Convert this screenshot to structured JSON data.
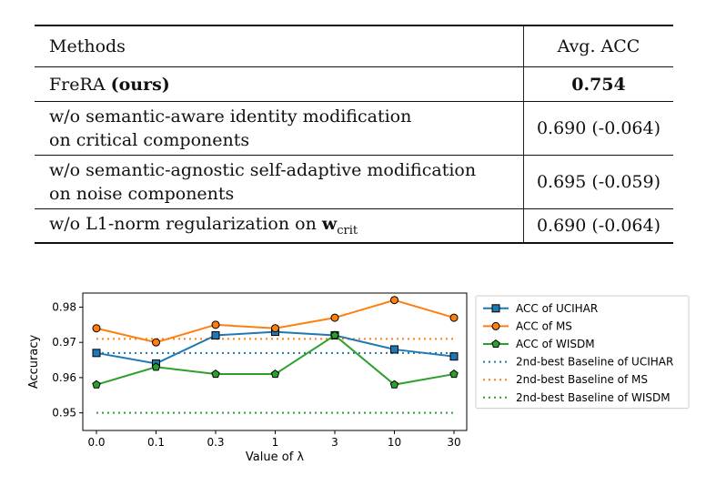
{
  "table": {
    "header": {
      "methods": "Methods",
      "avg_acc": "Avg. ACC"
    },
    "rows": [
      {
        "method_name": "FreRA",
        "method_suffix": "(ours)",
        "value": "0.754"
      },
      {
        "line1": "w/o semantic-aware identity modification",
        "line2": "on critical components",
        "value": "0.690 (-0.064)"
      },
      {
        "line1": "w/o semantic-agnostic self-adaptive modification",
        "line2": "on noise components",
        "value": "0.695 (-0.059)"
      },
      {
        "prefix": "w/o L1-norm regularization on ",
        "symbol": "w",
        "subscript": "crit",
        "value": "0.690 (-0.064)"
      }
    ]
  },
  "chart_data": {
    "type": "line",
    "xlabel": "Value of λ",
    "ylabel": "Accuracy",
    "categories": [
      "0.0",
      "0.1",
      "0.3",
      "1",
      "3",
      "10",
      "30"
    ],
    "yticks": [
      "0.95",
      "0.96",
      "0.97",
      "0.98"
    ],
    "ylim": [
      0.945,
      0.984
    ],
    "grid": false,
    "legend_position": "right, outside plot",
    "series": [
      {
        "name": "ACC of UCIHAR",
        "color": "#1f77b4",
        "marker": "square",
        "style": "solid",
        "values": [
          0.967,
          0.964,
          0.972,
          0.973,
          0.972,
          0.968,
          0.966
        ]
      },
      {
        "name": "ACC of MS",
        "color": "#ff7f0e",
        "marker": "circle",
        "style": "solid",
        "values": [
          0.974,
          0.97,
          0.975,
          0.974,
          0.977,
          0.982,
          0.977
        ]
      },
      {
        "name": "ACC of WISDM",
        "color": "#2ca02c",
        "marker": "pentagon",
        "style": "solid",
        "values": [
          0.958,
          0.963,
          0.961,
          0.961,
          0.972,
          0.958,
          0.961
        ]
      },
      {
        "name": "2nd-best Baseline of UCIHAR",
        "color": "#1f77b4",
        "style": "dotted",
        "values": [
          0.967,
          0.967,
          0.967,
          0.967,
          0.967,
          0.967,
          0.967
        ]
      },
      {
        "name": "2nd-best Baseline of MS",
        "color": "#ff7f0e",
        "style": "dotted",
        "values": [
          0.971,
          0.971,
          0.971,
          0.971,
          0.971,
          0.971,
          0.971
        ]
      },
      {
        "name": "2nd-best Baseline of WISDM",
        "color": "#2ca02c",
        "style": "dotted",
        "values": [
          0.95,
          0.95,
          0.95,
          0.95,
          0.95,
          0.95,
          0.95
        ]
      }
    ]
  }
}
